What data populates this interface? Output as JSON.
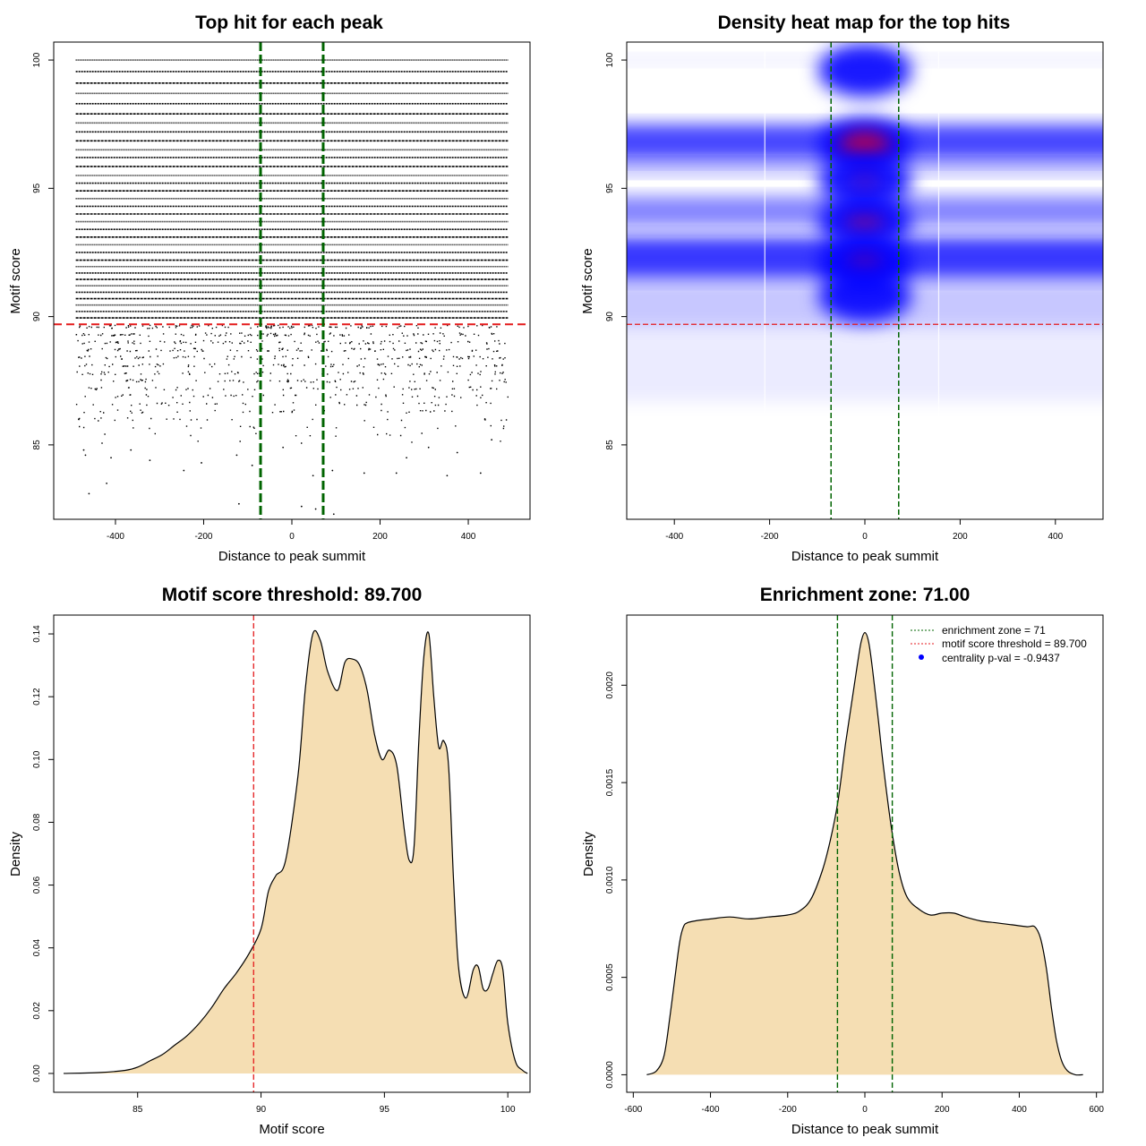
{
  "chart_data": [
    {
      "type": "scatter",
      "title": "Top hit for each peak",
      "xlabel": "Distance to peak summit",
      "ylabel": "Motif score",
      "xlim": [
        -540,
        540
      ],
      "ylim": [
        82.1,
        100.7
      ],
      "xticks": [
        -400,
        -200,
        0,
        200,
        400
      ],
      "yticks": [
        85,
        90,
        95,
        100
      ],
      "xtick_labels": [
        "-400",
        "-200",
        "0",
        "200",
        "400"
      ],
      "ytick_labels": [
        "85",
        "90",
        "95",
        "100"
      ],
      "point_x_range": [
        -490,
        490
      ],
      "enrichment_zone": 71,
      "score_threshold": 89.7,
      "dense_score_rows": [
        100,
        99.55,
        99.1,
        98.7,
        98.3,
        97.9,
        97.55,
        97.2,
        96.85,
        96.5,
        96.2,
        95.85,
        95.5,
        95.2,
        94.9,
        94.6,
        94.3,
        94.0,
        93.7,
        93.4,
        93.1,
        92.8,
        92.5,
        92.2,
        91.95,
        91.7,
        91.45,
        91.2,
        90.95,
        90.7,
        90.45,
        90.2,
        89.95
      ],
      "sparse_score_rows": [
        89.6,
        89.3,
        89.0,
        88.7,
        88.4,
        88.1,
        87.8,
        87.5,
        87.2,
        86.9,
        86.6,
        86.3,
        86.0,
        85.7,
        85.4,
        85.1
      ],
      "outlier_points": [
        [
          -472,
          84.8
        ],
        [
          -468,
          84.6
        ],
        [
          -410,
          84.5
        ],
        [
          -365,
          84.8
        ],
        [
          -322,
          84.4
        ],
        [
          -245,
          84.0
        ],
        [
          -205,
          84.3
        ],
        [
          -125,
          84.6
        ],
        [
          -90,
          84.2
        ],
        [
          22,
          82.6
        ],
        [
          48,
          83.8
        ],
        [
          92,
          84.0
        ],
        [
          164,
          83.9
        ],
        [
          237,
          83.9
        ],
        [
          260,
          84.5
        ],
        [
          352,
          83.8
        ],
        [
          375,
          84.7
        ],
        [
          428,
          83.9
        ],
        [
          -420,
          83.5
        ],
        [
          -460,
          83.1
        ],
        [
          -120,
          82.7
        ],
        [
          54,
          82.5
        ],
        [
          95,
          82.3
        ],
        [
          -20,
          84.9
        ],
        [
          310,
          84.9
        ],
        [
          453,
          85.2
        ]
      ]
    },
    {
      "type": "heatmap",
      "title": "Density heat map for the top hits",
      "xlabel": "Distance to peak summit",
      "ylabel": "Motif score",
      "xlim": [
        -500,
        500
      ],
      "ylim": [
        82.1,
        100.7
      ],
      "xticks": [
        -400,
        -200,
        0,
        200,
        400
      ],
      "yticks": [
        85,
        90,
        95,
        100
      ],
      "xtick_labels": [
        "-400",
        "-200",
        "0",
        "200",
        "400"
      ],
      "ytick_labels": [
        "85",
        "90",
        "95",
        "100"
      ],
      "enrichment_zone": 71,
      "score_threshold": 89.7,
      "colors": {
        "low": "#ffffff",
        "mid": "#0000ff",
        "high": "#ff0000"
      },
      "background_bands": [
        {
          "score": 100,
          "spread": 0.2,
          "level": 0.07
        },
        {
          "score": 96.8,
          "spread": 0.7,
          "level": 0.72
        },
        {
          "score": 95.8,
          "spread": 0.3,
          "level": 0.28
        },
        {
          "score": 94.1,
          "spread": 0.6,
          "level": 0.48
        },
        {
          "score": 92.3,
          "spread": 0.8,
          "level": 0.78
        },
        {
          "score": 90.5,
          "spread": 1.0,
          "level": 0.22
        },
        {
          "score": 88.0,
          "spread": 1.3,
          "level": 0.08
        }
      ],
      "hotspots": [
        {
          "x": 0,
          "score": 96.7,
          "level": 1.0
        },
        {
          "x": 0,
          "score": 93.7,
          "level": 0.75
        },
        {
          "x": 0,
          "score": 92.1,
          "level": 0.68
        },
        {
          "x": 0,
          "score": 95.3,
          "level": 0.6
        },
        {
          "x": 0,
          "score": 99.6,
          "level": 0.3
        },
        {
          "x": 0,
          "score": 90.8,
          "level": 0.35
        }
      ],
      "faint_verticals": [
        -210,
        155
      ]
    },
    {
      "type": "area",
      "title": "Motif score threshold: 89.700",
      "xlabel": "Motif score",
      "ylabel": "Density",
      "xlim": [
        81.6,
        100.9
      ],
      "ylim": [
        -0.006,
        0.146
      ],
      "xticks": [
        85,
        90,
        95,
        100
      ],
      "yticks": [
        0,
        0.02,
        0.04,
        0.06,
        0.08,
        0.1,
        0.12,
        0.14
      ],
      "xtick_labels": [
        "85",
        "90",
        "95",
        "100"
      ],
      "ytick_labels": [
        "0.00",
        "0.02",
        "0.04",
        "0.06",
        "0.08",
        "0.10",
        "0.12",
        "0.14"
      ],
      "threshold_line": 89.7,
      "fill": "#f5deb3",
      "x": [
        82.0,
        83.5,
        84.5,
        85.0,
        85.5,
        86.0,
        86.5,
        87.0,
        87.5,
        88.0,
        88.5,
        89.0,
        89.5,
        90.0,
        90.3,
        90.6,
        91.0,
        91.5,
        91.8,
        92.1,
        92.4,
        92.7,
        93.1,
        93.4,
        93.7,
        94.0,
        94.3,
        94.6,
        94.9,
        95.2,
        95.5,
        95.8,
        96.0,
        96.2,
        96.4,
        96.6,
        96.8,
        97.0,
        97.2,
        97.4,
        97.6,
        97.8,
        98.0,
        98.3,
        98.6,
        98.8,
        99.0,
        99.2,
        99.4,
        99.6,
        99.8,
        100.0,
        100.3,
        100.6,
        100.8
      ],
      "values": [
        0.0,
        0.0003,
        0.001,
        0.002,
        0.004,
        0.006,
        0.009,
        0.012,
        0.016,
        0.021,
        0.027,
        0.032,
        0.038,
        0.046,
        0.058,
        0.063,
        0.068,
        0.095,
        0.123,
        0.14,
        0.138,
        0.128,
        0.122,
        0.131,
        0.132,
        0.13,
        0.122,
        0.108,
        0.1,
        0.103,
        0.098,
        0.078,
        0.068,
        0.072,
        0.107,
        0.133,
        0.14,
        0.12,
        0.104,
        0.106,
        0.098,
        0.062,
        0.034,
        0.024,
        0.033,
        0.034,
        0.027,
        0.027,
        0.032,
        0.036,
        0.033,
        0.016,
        0.004,
        0.001,
        0.0
      ]
    },
    {
      "type": "area",
      "title": "Enrichment zone: 71.00",
      "xlabel": "Distance to peak summit",
      "ylabel": "Density",
      "xlim": [
        -617,
        617
      ],
      "ylim": [
        -9e-05,
        0.00236
      ],
      "xticks": [
        -600,
        -400,
        -200,
        0,
        200,
        400,
        600
      ],
      "yticks": [
        0,
        0.0005,
        0.001,
        0.0015,
        0.002
      ],
      "xtick_labels": [
        "-600",
        "-400",
        "-200",
        "0",
        "200",
        "400",
        "600"
      ],
      "ytick_labels": [
        "0.0000",
        "0.0005",
        "0.0010",
        "0.0015",
        "0.0020"
      ],
      "enrichment_zone": 71,
      "fill": "#f5deb3",
      "x": [
        -565,
        -540,
        -520,
        -505,
        -492,
        -480,
        -470,
        -460,
        -440,
        -400,
        -350,
        -300,
        -250,
        -200,
        -170,
        -140,
        -110,
        -90,
        -70,
        -50,
        -35,
        -20,
        -10,
        0,
        10,
        20,
        35,
        50,
        70,
        90,
        110,
        140,
        170,
        200,
        230,
        260,
        300,
        340,
        380,
        420,
        440,
        455,
        470,
        483,
        496,
        510,
        525,
        545,
        565
      ],
      "values": [
        0.0,
        2e-05,
        0.0001,
        0.0003,
        0.0005,
        0.00068,
        0.00076,
        0.00078,
        0.00079,
        0.0008,
        0.00081,
        0.0008,
        0.00081,
        0.00082,
        0.00084,
        0.0009,
        0.00105,
        0.0012,
        0.0014,
        0.0017,
        0.0019,
        0.0021,
        0.00222,
        0.00227,
        0.00222,
        0.00208,
        0.00182,
        0.00155,
        0.00125,
        0.00103,
        0.00091,
        0.00085,
        0.00082,
        0.00083,
        0.00083,
        0.00081,
        0.00079,
        0.00078,
        0.00077,
        0.00076,
        0.00076,
        0.0007,
        0.00055,
        0.00035,
        0.00018,
        7e-05,
        2e-05,
        0.0,
        0.0
      ],
      "legend": [
        {
          "label": "enrichment zone = 71",
          "style": "dotted",
          "color": "#006400"
        },
        {
          "label": "motif score threshold = 89.700",
          "style": "dotted",
          "color": "#e41a1c"
        },
        {
          "label": "centrality p-val = -0.9437",
          "style": "point",
          "color": "#0000ff"
        }
      ],
      "legend_position": "top-right"
    }
  ]
}
